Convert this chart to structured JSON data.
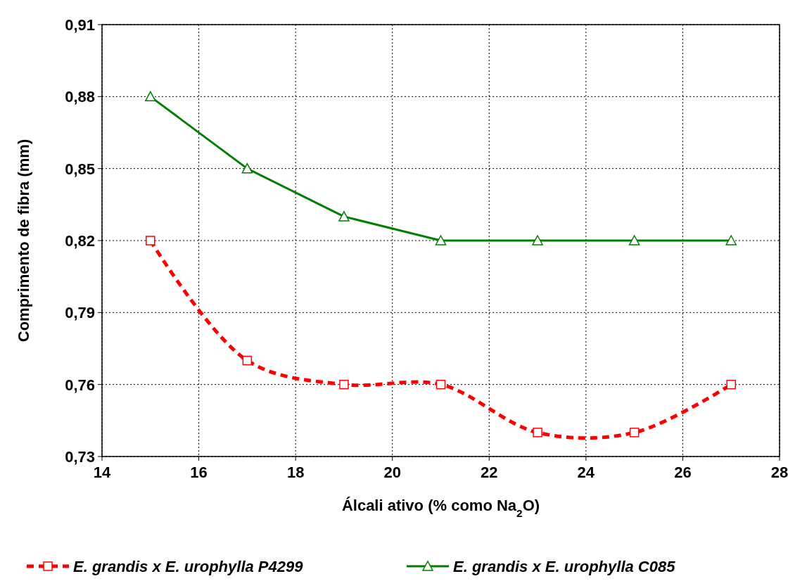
{
  "chart_data": {
    "type": "line",
    "xlabel": "Álcali ativo (% como Na$_{2}$O)",
    "ylabel": "Comprimento de fibra (mm)",
    "x": [
      15,
      17,
      19,
      21,
      23,
      25,
      27
    ],
    "xlim": [
      14,
      28
    ],
    "xticks": [
      14,
      16,
      18,
      20,
      22,
      24,
      26,
      28
    ],
    "ylim": [
      0.73,
      0.91
    ],
    "yticks": [
      {
        "value": 0.73,
        "label": "0,73"
      },
      {
        "value": 0.76,
        "label": "0,76"
      },
      {
        "value": 0.79,
        "label": "0,79"
      },
      {
        "value": 0.82,
        "label": "0,82"
      },
      {
        "value": 0.85,
        "label": "0,85"
      },
      {
        "value": 0.88,
        "label": "0,88"
      },
      {
        "value": 0.91,
        "label": "0,91"
      }
    ],
    "grid": true,
    "legend": "bottom",
    "series": [
      {
        "name": "E. grandis x E. urophylla P4299",
        "color": "#ff0000",
        "values": [
          0.82,
          0.77,
          0.76,
          0.76,
          0.74,
          0.74,
          0.76
        ],
        "marker": "square",
        "line_style": "dashed"
      },
      {
        "name": "E. grandis x E. urophylla C085",
        "color": "#008000",
        "values": [
          0.88,
          0.85,
          0.83,
          0.82,
          0.82,
          0.82,
          0.82
        ],
        "marker": "triangle",
        "line_style": "solid"
      }
    ]
  }
}
